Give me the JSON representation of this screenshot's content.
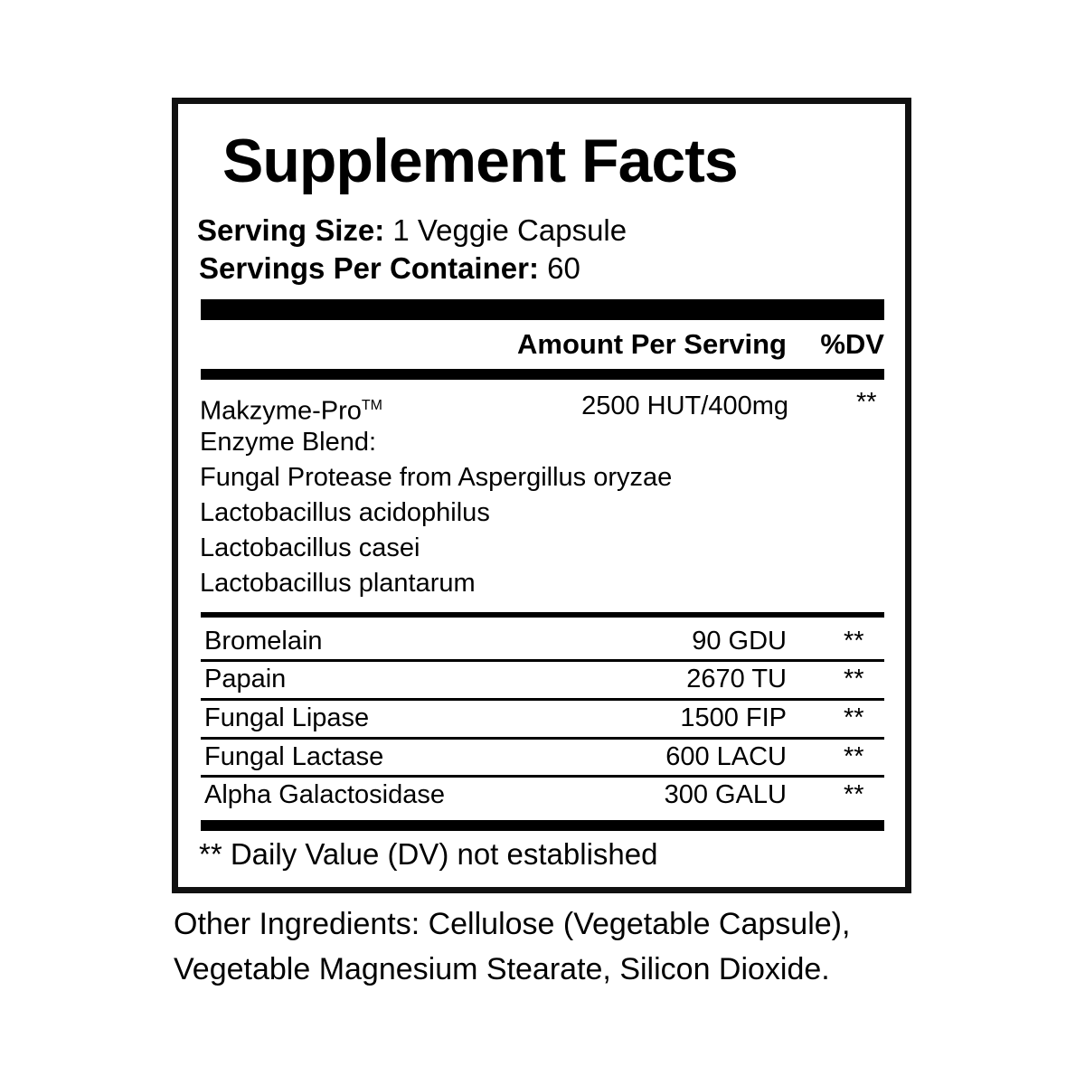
{
  "title": "Supplement Facts",
  "serving_size": {
    "label": "Serving Size:",
    "value": "1 Veggie Capsule"
  },
  "servings_per_container": {
    "label": "Servings Per Container:",
    "value": "60"
  },
  "header": {
    "amount": "Amount Per Serving",
    "dv": "%DV"
  },
  "blend": {
    "name": "Makzyme-Pro",
    "trademark": "TM",
    "amount": "2500 HUT/400mg",
    "dv": "**",
    "lines": [
      "Enzyme Blend:",
      "Fungal Protease from Aspergillus oryzae",
      "Lactobacillus acidophilus",
      "Lactobacillus casei",
      "Lactobacillus plantarum"
    ]
  },
  "rows": [
    {
      "name": "Bromelain",
      "amount": "90 GDU",
      "dv": "**"
    },
    {
      "name": "Papain",
      "amount": "2670 TU",
      "dv": "**"
    },
    {
      "name": "Fungal Lipase",
      "amount": "1500 FIP",
      "dv": "**"
    },
    {
      "name": "Fungal Lactase",
      "amount": "600 LACU",
      "dv": "**"
    },
    {
      "name": "Alpha Galactosidase",
      "amount": "300 GALU",
      "dv": "**"
    }
  ],
  "footnote": "** Daily Value (DV) not established",
  "other_ingredients": [
    "Other Ingredients: Cellulose (Vegetable Capsule),",
    "Vegetable Magnesium Stearate, Silicon Dioxide."
  ]
}
